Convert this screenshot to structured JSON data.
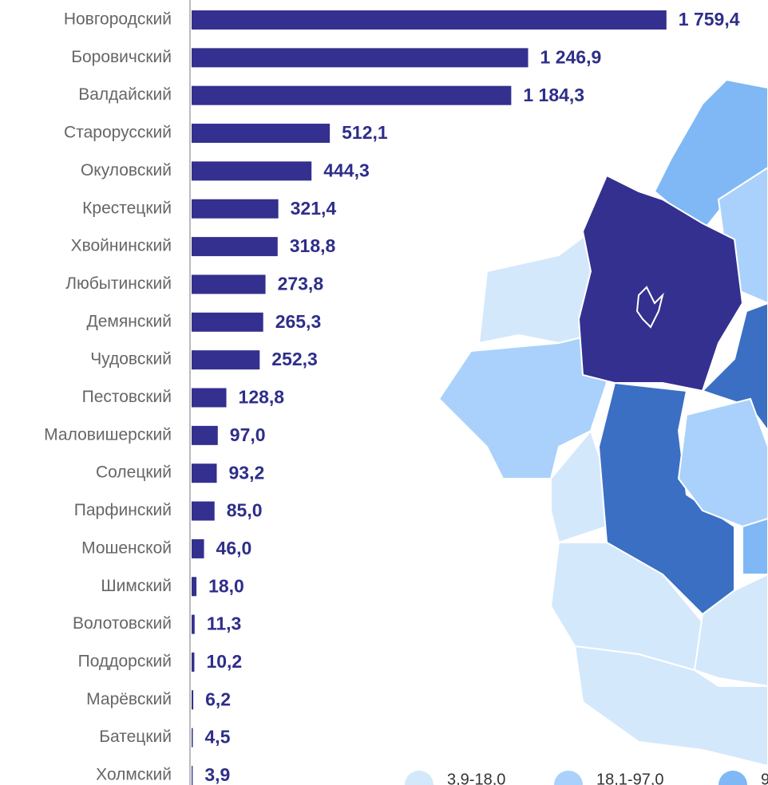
{
  "chart_data": {
    "type": "barh",
    "categories": [
      "Новгородский",
      "Боровичский",
      "Валдайский",
      "Старорусский",
      "Окуловский",
      "Крестецкий",
      "Хвойнинский",
      "Любытинский",
      "Демянский",
      "Чудовский",
      "Пестовский",
      "Маловишерский",
      "Солецкий",
      "Парфинский",
      "Мошенской",
      "Шимский",
      "Волотовский",
      "Поддорский",
      "Марёвский",
      "Батецкий",
      "Холмский"
    ],
    "values": [
      1759.4,
      1246.9,
      1184.3,
      512.1,
      444.3,
      321.4,
      318.8,
      273.8,
      265.3,
      252.3,
      128.8,
      97.0,
      93.2,
      85.0,
      46.0,
      18.0,
      11.3,
      10.2,
      6.2,
      4.5,
      3.9
    ],
    "value_labels": [
      "1 759,4",
      "1 246,9",
      "1 184,3",
      "512,1",
      "444,3",
      "321,4",
      "318,8",
      "273,8",
      "265,3",
      "252,3",
      "128,8",
      "97,0",
      "93,2",
      "85,0",
      "46,0",
      "18,0",
      "11,3",
      "10,2",
      "6,2",
      "4,5",
      "3,9"
    ],
    "color": "#34308f",
    "xlim": [
      0,
      1760
    ],
    "map_legend": [
      {
        "label": "3,9-18,0",
        "color": "#d4e8fc"
      },
      {
        "label": "18,1-97,0",
        "color": "#a9d1fb"
      },
      {
        "label": "9",
        "color": "#7fb8f5"
      }
    ]
  }
}
